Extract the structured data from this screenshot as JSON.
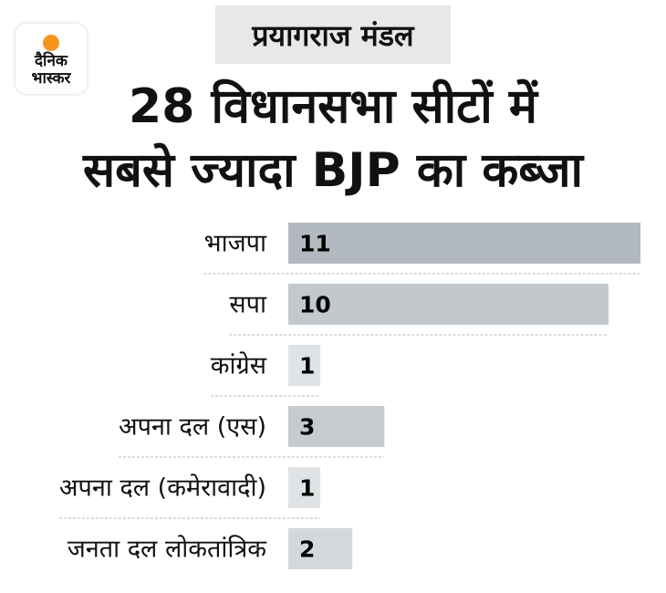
{
  "logo": {
    "line1": "दैनिक",
    "line2": "भास्कर",
    "dot_color": "#f7941d"
  },
  "header": {
    "tag": "प्रयागराज मंडल",
    "title_line1": "28 विधानसभा सीटों में",
    "title_line2": "सबसे ज्यादा BJP का कब्जा"
  },
  "chart_data": {
    "type": "bar",
    "orientation": "horizontal",
    "title": "28 विधानसभा सीटों में सबसे ज्यादा BJP का कब्जा",
    "categories": [
      "भाजपा",
      "सपा",
      "कांग्रेस",
      "अपना दल (एस)",
      "अपना दल (कमेरावादी)",
      "जनता दल लोकतांत्रिक"
    ],
    "values": [
      11,
      10,
      1,
      3,
      1,
      2
    ],
    "value_labels": [
      "11",
      "10",
      "1",
      "3",
      "1",
      "2"
    ],
    "colors": [
      "#b3b9c0",
      "#c2c8cc",
      "#e0e3e6",
      "#c5cbcf",
      "#e0e3e6",
      "#d3d8dc"
    ],
    "xlim": [
      0,
      11
    ],
    "grid": false
  }
}
